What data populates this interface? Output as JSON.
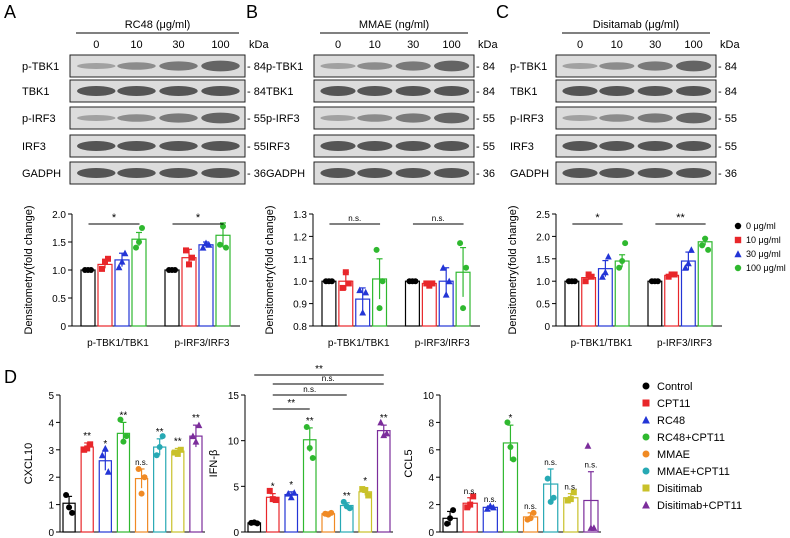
{
  "colors": {
    "black": "#000000",
    "red": "#e8262a",
    "blue": "#2335d6",
    "green": "#2fb82f",
    "orange": "#f08a24",
    "teal": "#27a9b4",
    "olive": "#c9c12a",
    "purple": "#7b2d9b"
  },
  "blots": [
    {
      "letter": "A",
      "title": "RC48 (μg/ml)",
      "doses": [
        "0",
        "10",
        "30",
        "100"
      ],
      "kda_label": "kDa",
      "rows": [
        {
          "label": "p-TBK1",
          "kda": "84"
        },
        {
          "label": "TBK1",
          "kda": "84"
        },
        {
          "label": "p-IRF3",
          "kda": "55"
        },
        {
          "label": "IRF3",
          "kda": "55"
        },
        {
          "label": "GADPH",
          "kda": "36"
        }
      ]
    },
    {
      "letter": "B",
      "title": "MMAE (ng/ml)",
      "doses": [
        "0",
        "10",
        "30",
        "100"
      ],
      "kda_label": "kDa",
      "rows": [
        {
          "label": "p-TBK1",
          "kda": "84"
        },
        {
          "label": "TBK1",
          "kda": "84"
        },
        {
          "label": "p-IRF3",
          "kda": "55"
        },
        {
          "label": "IRF3",
          "kda": "55"
        },
        {
          "label": "GADPH",
          "kda": "36"
        }
      ]
    },
    {
      "letter": "C",
      "title": "Disitamab (μg/ml)",
      "doses": [
        "0",
        "10",
        "30",
        "100"
      ],
      "kda_label": "kDa",
      "rows": [
        {
          "label": "p-TBK1",
          "kda": "84"
        },
        {
          "label": "TBK1",
          "kda": "84"
        },
        {
          "label": "p-IRF3",
          "kda": "55"
        },
        {
          "label": "IRF3",
          "kda": "55"
        },
        {
          "label": "GADPH",
          "kda": "36"
        }
      ]
    }
  ],
  "panel_d_letter": "D",
  "chart_data": [
    {
      "type": "bar",
      "panel": "A",
      "ylabel": "Densitometry(fold change)",
      "ylim": [
        0,
        2.0
      ],
      "yticks": [
        "0",
        "0.5",
        "1.0",
        "1.5",
        "2.0"
      ],
      "groups": [
        "p-TBK1/TBK1",
        "p-IRF3/IRF3"
      ],
      "series": [
        {
          "name": "0 μg/ml",
          "values": [
            1.0,
            1.0
          ]
        },
        {
          "name": "10 μg/ml",
          "values": [
            1.1,
            1.22
          ]
        },
        {
          "name": "30 μg/ml",
          "values": [
            1.18,
            1.45
          ]
        },
        {
          "name": "100 μg/ml",
          "values": [
            1.55,
            1.62
          ]
        }
      ],
      "points": [
        [
          [
            1,
            1,
            1
          ],
          [
            1,
            1,
            1
          ]
        ],
        [
          [
            1.02,
            1.15,
            1.2
          ],
          [
            1.35,
            1.1,
            1.22
          ]
        ],
        [
          [
            1.05,
            1.15,
            1.3
          ],
          [
            1.4,
            1.48,
            1.45
          ]
        ],
        [
          [
            1.4,
            1.5,
            1.75
          ],
          [
            1.45,
            1.78,
            1.4
          ]
        ]
      ],
      "errors": [
        [
          0,
          0
        ],
        [
          0.07,
          0.15
        ],
        [
          0.12,
          0.05
        ],
        [
          0.12,
          0.22
        ]
      ],
      "sig": [
        {
          "label": "*",
          "group": 0
        },
        {
          "label": "*",
          "group": 1
        }
      ]
    },
    {
      "type": "bar",
      "panel": "B",
      "ylabel": "Densitometry(fold change)",
      "ylim": [
        0.8,
        1.3
      ],
      "yticks": [
        "0.8",
        "0.9",
        "1.0",
        "1.1",
        "1.2",
        "1.3"
      ],
      "groups": [
        "p-TBK1/TBK1",
        "p-IRF3/IRF3"
      ],
      "series": [
        {
          "name": "0",
          "values": [
            1.0,
            1.0
          ]
        },
        {
          "name": "10",
          "values": [
            1.0,
            0.99
          ]
        },
        {
          "name": "30",
          "values": [
            0.92,
            1.0
          ]
        },
        {
          "name": "100",
          "values": [
            1.01,
            1.04
          ]
        }
      ],
      "points": [
        [
          [
            1,
            1,
            1
          ],
          [
            1,
            1,
            1
          ]
        ],
        [
          [
            0.97,
            1.04,
            0.99
          ],
          [
            0.99,
            0.98,
            0.99
          ]
        ],
        [
          [
            0.96,
            0.86,
            0.95
          ],
          [
            1.06,
            0.94,
            1.0
          ]
        ],
        [
          [
            1.14,
            0.88,
            1.0
          ],
          [
            1.17,
            0.88,
            1.06
          ]
        ]
      ],
      "errors": [
        [
          0,
          0
        ],
        [
          0.04,
          0.01
        ],
        [
          0.05,
          0.06
        ],
        [
          0.09,
          0.11
        ]
      ],
      "sig": [
        {
          "label": "n.s.",
          "group": 0
        },
        {
          "label": "n.s.",
          "group": 1
        }
      ]
    },
    {
      "type": "bar",
      "panel": "C",
      "ylabel": "Densitometry(fold change)",
      "ylim": [
        0,
        2.5
      ],
      "yticks": [
        "0",
        "0.5",
        "1.0",
        "1.5",
        "2.0",
        "2.5"
      ],
      "groups": [
        "p-TBK1/TBK1",
        "p-IRF3/IRF3"
      ],
      "series": [
        {
          "name": "0 μg/ml",
          "values": [
            1.0,
            1.0
          ]
        },
        {
          "name": "10 μg/ml",
          "values": [
            1.08,
            1.13
          ]
        },
        {
          "name": "30 μg/ml",
          "values": [
            1.28,
            1.45
          ]
        },
        {
          "name": "100 μg/ml",
          "values": [
            1.45,
            1.88
          ]
        }
      ],
      "points": [
        [
          [
            1,
            1,
            1
          ],
          [
            1,
            1,
            1
          ]
        ],
        [
          [
            1.0,
            1.15,
            1.1
          ],
          [
            1.1,
            1.15,
            1.15
          ]
        ],
        [
          [
            1.1,
            1.2,
            1.55
          ],
          [
            1.3,
            1.4,
            1.7
          ]
        ],
        [
          [
            1.3,
            1.45,
            1.85
          ],
          [
            1.8,
            1.95,
            1.7
          ]
        ]
      ],
      "errors": [
        [
          0,
          0
        ],
        [
          0.05,
          0.04
        ],
        [
          0.18,
          0.2
        ],
        [
          0.14,
          0.08
        ]
      ],
      "sig": [
        {
          "label": "*",
          "group": 0
        },
        {
          "label": "**",
          "group": 1
        }
      ],
      "legend": [
        "0  μg/ml",
        "10  μg/ml",
        "30  μg/ml",
        "100  μg/ml"
      ]
    },
    {
      "type": "bar",
      "panel": "D1",
      "ylabel": "CXCL10",
      "ylim": [
        0,
        5
      ],
      "yticks": [
        "0",
        "1",
        "2",
        "3",
        "4",
        "5"
      ],
      "categories": [
        "Control",
        "CPT11",
        "RC48",
        "RC48+CPT11",
        "MMAE",
        "MMAE+CPT11",
        "Disitimab",
        "Disitimab+CPT11"
      ],
      "values": [
        1.05,
        3.1,
        2.6,
        3.6,
        1.95,
        3.1,
        2.95,
        3.5
      ],
      "errors": [
        0.25,
        0.15,
        0.35,
        0.4,
        0.35,
        0.3,
        0.1,
        0.4
      ],
      "points": [
        [
          1.35,
          0.9,
          0.7
        ],
        [
          3.0,
          3.05,
          3.2
        ],
        [
          2.8,
          3.05,
          2.2
        ],
        [
          4.1,
          3.3,
          3.5
        ],
        [
          2.3,
          1.4,
          2.0
        ],
        [
          2.8,
          3.1,
          3.5
        ],
        [
          2.9,
          2.85,
          3.0
        ],
        [
          3.5,
          3.3,
          3.9
        ]
      ],
      "sig": [
        "",
        "**",
        "*",
        "**",
        "n.s.",
        "**",
        "**",
        "**"
      ]
    },
    {
      "type": "bar",
      "panel": "D2",
      "ylabel": "IFN-β",
      "ylim": [
        0,
        15
      ],
      "yticks": [
        "0",
        "5",
        "10",
        "15"
      ],
      "categories": [
        "Control",
        "CPT11",
        "RC48",
        "RC48+CPT11",
        "MMAE",
        "MMAE+CPT11",
        "Disitimab",
        "Disitimab+CPT11"
      ],
      "values": [
        1.0,
        3.8,
        4.1,
        10.1,
        2.0,
        2.9,
        4.4,
        11.1
      ],
      "errors": [
        0.1,
        0.4,
        0.3,
        1.3,
        0.2,
        0.3,
        0.4,
        0.6
      ],
      "points": [
        [
          1.0,
          1.05,
          0.95
        ],
        [
          4.5,
          3.6,
          3.5
        ],
        [
          4.2,
          3.8,
          4.3
        ],
        [
          11.5,
          9.2,
          8.1
        ],
        [
          2.0,
          1.9,
          2.1
        ],
        [
          3.3,
          2.8,
          2.6
        ],
        [
          4.7,
          4.6,
          4.0
        ],
        [
          12.0,
          10.6,
          10.8
        ]
      ],
      "sig": [
        "",
        "*",
        "*",
        "**",
        "",
        "**",
        "*",
        "**"
      ],
      "brackets": [
        {
          "from": 1,
          "to": 3,
          "label": "**"
        },
        {
          "from": 1,
          "to": 5,
          "label": "n.s."
        },
        {
          "from": 1,
          "to": 7,
          "label": "n.s."
        },
        {
          "from": 0,
          "to": 7,
          "label": "**"
        }
      ]
    },
    {
      "type": "bar",
      "panel": "D3",
      "ylabel": "CCL5",
      "ylim": [
        0,
        10
      ],
      "yticks": [
        "0",
        "2",
        "4",
        "6",
        "8",
        "10"
      ],
      "categories": [
        "Control",
        "CPT11",
        "RC48",
        "RC48+CPT11",
        "MMAE",
        "MMAE+CPT11",
        "Disitimab",
        "Disitimab+CPT11"
      ],
      "values": [
        1.0,
        2.1,
        1.8,
        6.5,
        1.1,
        3.5,
        2.5,
        2.3
      ],
      "errors": [
        0.5,
        0.4,
        0.1,
        1.3,
        0.3,
        1.1,
        0.3,
        2.1
      ],
      "points": [
        [
          0.6,
          1.0,
          1.6
        ],
        [
          1.8,
          2.0,
          2.6
        ],
        [
          1.7,
          1.9,
          1.8
        ],
        [
          8.0,
          6.2,
          5.3
        ],
        [
          0.9,
          1.0,
          1.4
        ],
        [
          3.9,
          2.2,
          2.5
        ],
        [
          2.3,
          2.4,
          2.9
        ],
        [
          6.3,
          0.3,
          0.3
        ]
      ],
      "sig": [
        "",
        "n.s.",
        "n.s.",
        "*",
        "n.s.",
        "n.s.",
        "n.s.",
        "n.s."
      ],
      "legend": [
        "Control",
        "CPT11",
        "RC48",
        "RC48+CPT11",
        "MMAE",
        "MMAE+CPT11",
        "Disitimab",
        "Disitimab+CPT11"
      ]
    }
  ]
}
